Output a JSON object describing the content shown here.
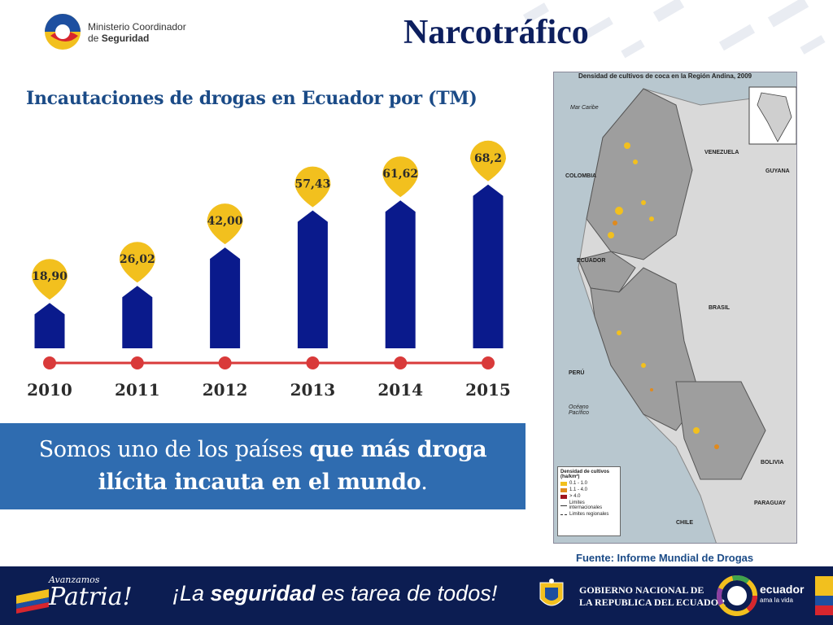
{
  "header": {
    "logo_line1": "Ministerio Coordinador",
    "logo_line2_prefix": "de ",
    "logo_line2_bold": "Seguridad",
    "title": "Narcotráfico"
  },
  "chart_data": {
    "type": "bar",
    "title": "Incautaciones de drogas en Ecuador por (TM)",
    "categories": [
      "2010",
      "2011",
      "2012",
      "2013",
      "2014",
      "2015"
    ],
    "values": [
      18.9,
      26.02,
      42.0,
      57.43,
      61.62,
      68.2
    ],
    "value_labels": [
      "18,90",
      "26,02",
      "42,00",
      "57,43",
      "61,62",
      "68,2"
    ],
    "xlabel": "",
    "ylabel": "",
    "bar_color": "#0a1a8c",
    "label_color": "#f2c01e",
    "timeline_color": "#d93a3a"
  },
  "banner": {
    "text_normal": "Somos uno de los países ",
    "text_bold_1": "que más droga",
    "text_bold_2": "ilícita incauta en el mundo",
    "text_end": "."
  },
  "map": {
    "title": "Densidad de cultivos de coca en la Región Andina, 2009",
    "labels": {
      "mar_caribe": "Mar Caribe",
      "venezuela": "VENEZUELA",
      "guyana": "GUYANA",
      "colombia": "COLOMBIA",
      "ecuador": "ECUADOR",
      "brasil": "BRASIL",
      "peru": "PERÚ",
      "oceano": "Océano Pacífico",
      "bolivia": "BOLIVIA",
      "paraguay": "PARAGUAY",
      "chile": "CHILE"
    },
    "legend": {
      "title": "Densidad de cultivos (ha/km²)",
      "items": [
        "0.1 - 1.0",
        "1.1 - 4.0",
        "> 4.0",
        "Limites internacionales",
        "Limites regionales"
      ]
    }
  },
  "source": "Fuente: Informe Mundial de Drogas",
  "footer": {
    "avanzamos_small": "Avanzamos",
    "avanzamos_big": "Patria!",
    "slogan_start": "¡La ",
    "slogan_bold": "seguridad",
    "slogan_end": " es tarea de todos!",
    "gob_line1": "GOBIERNO NACIONAL DE",
    "gob_line2": "LA REPUBLICA DEL ECUADOR",
    "ecuador_brand": "ecuador",
    "ecuador_tagline": "ama la vida"
  }
}
